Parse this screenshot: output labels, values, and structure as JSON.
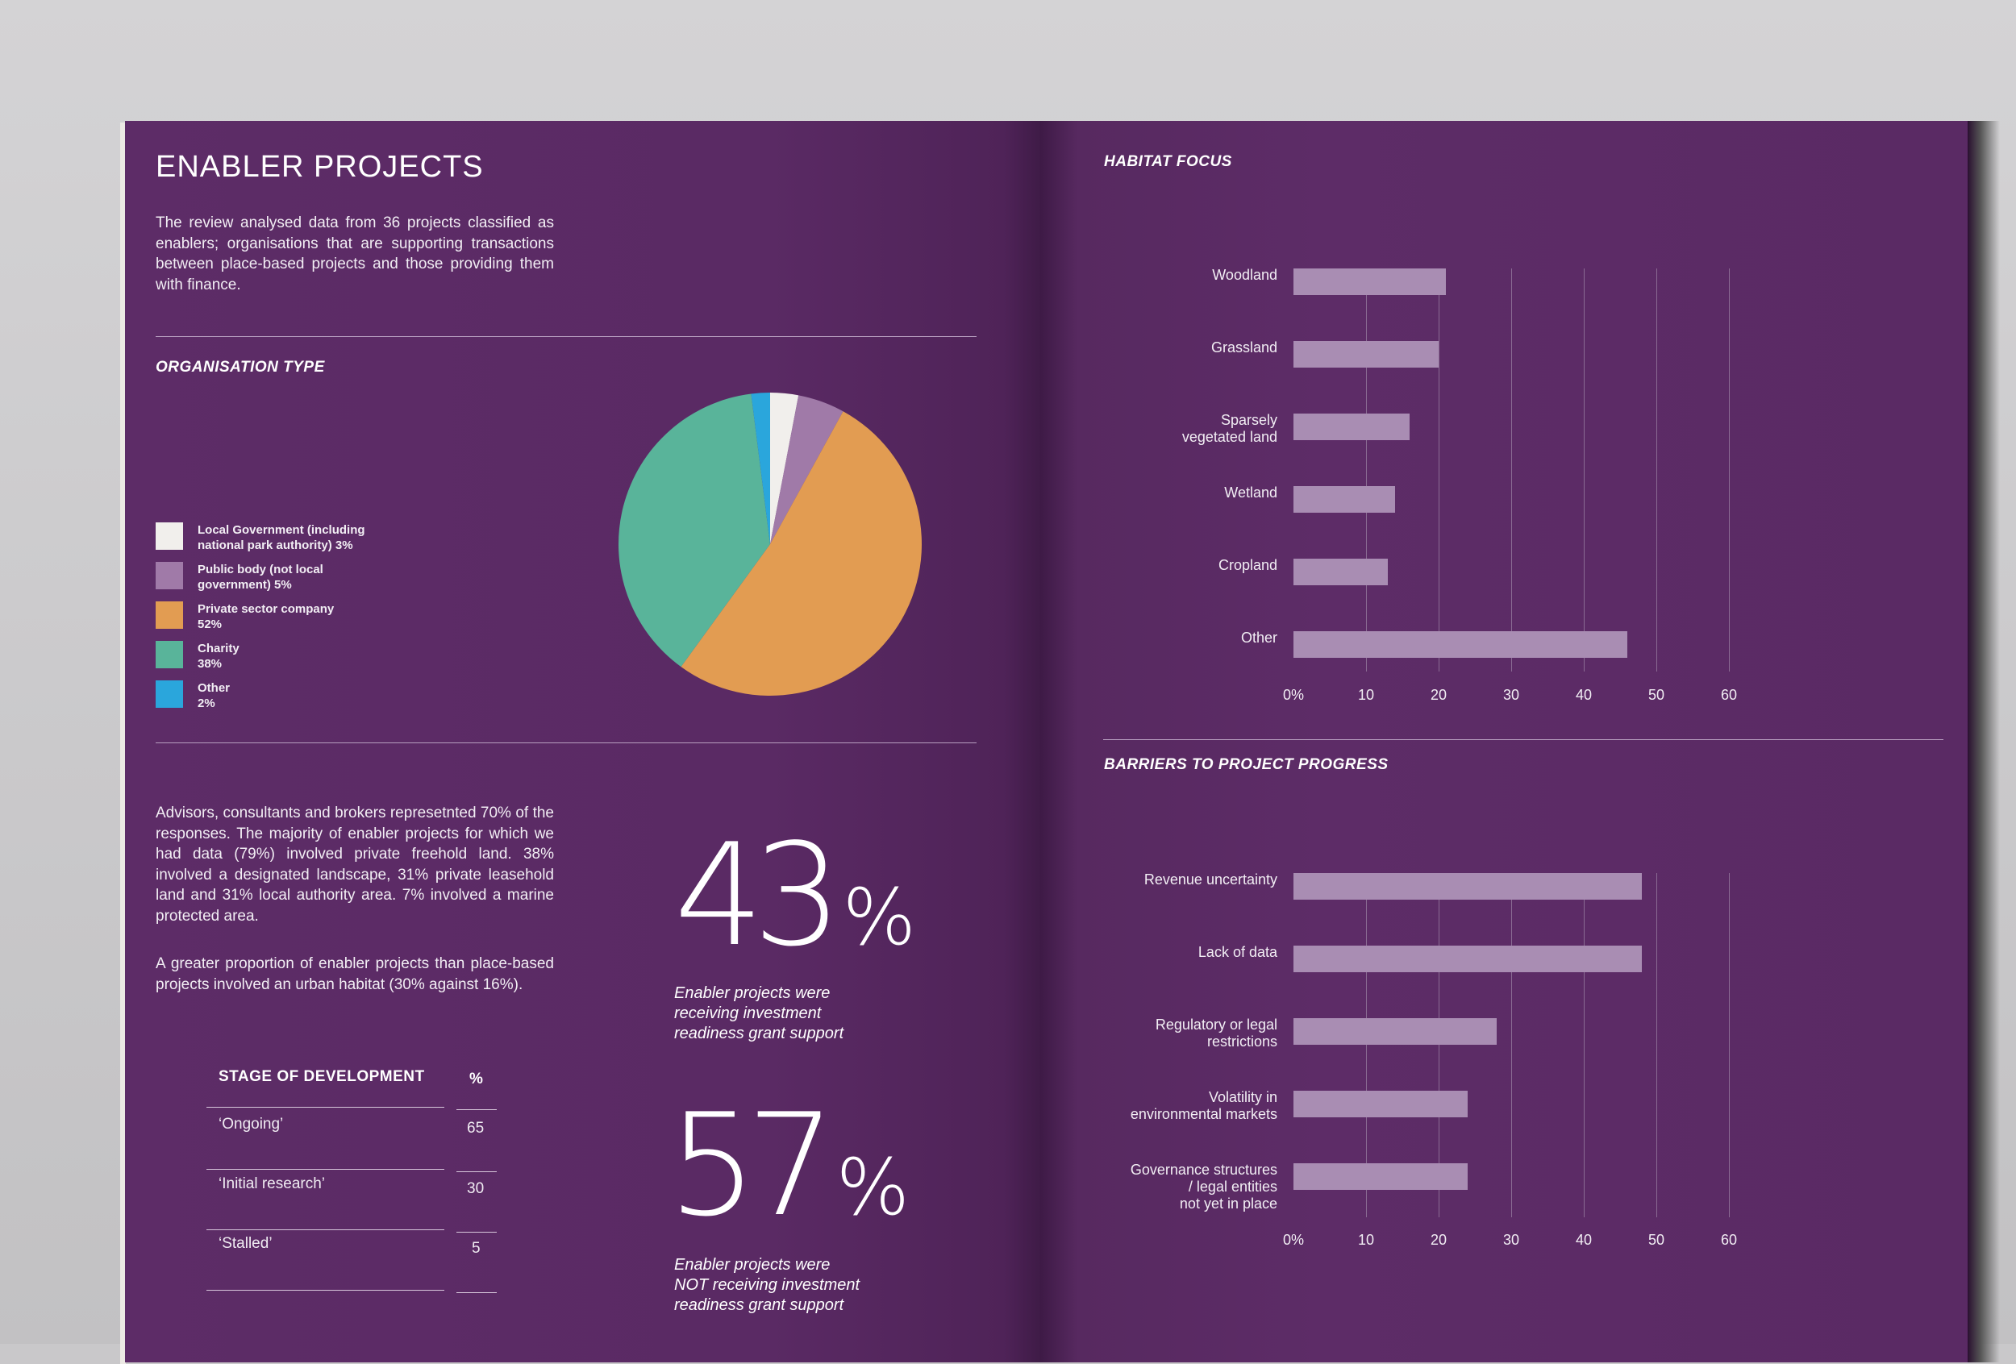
{
  "left": {
    "title": "ENABLER PROJECTS",
    "intro": "The review analysed data from 36 projects classified as enablers; organisations that are supporting transactions between place-based projects and those providing them with finance.",
    "org_type_heading": "ORGANISATION TYPE",
    "legend": [
      {
        "label_line1": "Local Government (including",
        "label_line2": "national park authority) 3%",
        "color": "#f1efec"
      },
      {
        "label_line1": "Public body (not local",
        "label_line2": "government) 5%",
        "color": "#a07aa8"
      },
      {
        "label_line1": "Private sector company",
        "label_line2": "52%",
        "color": "#e29c52"
      },
      {
        "label_line1": "Charity",
        "label_line2": "38%",
        "color": "#59b49a"
      },
      {
        "label_line1": "Other",
        "label_line2": "2%",
        "color": "#2aa6dc"
      }
    ],
    "body1": "Advisors, consultants and brokers represetnted 70% of the responses. The majority of enabler projects for which we had data (79%) involved private freehold land. 38% involved a designated landscape, 31% private leasehold land and 31% local authority area. 7% involved a marine protected area.",
    "body2": "A greater proportion of enabler projects than place-based projects involved an urban habitat (30% against 16%).",
    "stat1": {
      "number": "43",
      "symbol": "%",
      "caption_l1": "Enabler projects were",
      "caption_l2": "receiving investment",
      "caption_l3": "readiness grant support"
    },
    "stat2": {
      "number": "57",
      "symbol": "%",
      "caption_l1": "Enabler projects were",
      "caption_l2": "NOT receiving investment",
      "caption_l3": "readiness grant support"
    },
    "table": {
      "col1": "STAGE OF DEVELOPMENT",
      "col2": "%",
      "rows": [
        {
          "stage": "‘Ongoing’",
          "pct": "65"
        },
        {
          "stage": "‘Initial research’",
          "pct": "30"
        },
        {
          "stage": "‘Stalled’",
          "pct": "5"
        }
      ]
    }
  },
  "right": {
    "habitat_heading": "HABITAT FOCUS",
    "barriers_heading": "BARRIERS TO PROJECT PROGRESS"
  },
  "chart_data": [
    {
      "type": "pie",
      "title": "ORGANISATION TYPE",
      "categories": [
        "Local Government (including national park authority)",
        "Public body (not local government)",
        "Private sector company",
        "Charity",
        "Other"
      ],
      "values": [
        3,
        5,
        52,
        38,
        2
      ],
      "colors": [
        "#f1efec",
        "#a07aa8",
        "#e29c52",
        "#59b49a",
        "#2aa6dc"
      ]
    },
    {
      "type": "bar",
      "orientation": "horizontal",
      "title": "HABITAT FOCUS",
      "categories": [
        "Woodland",
        "Grassland",
        "Sparsely vegetated land",
        "Wetland",
        "Cropland",
        "Other"
      ],
      "category_lines": [
        [
          "Woodland"
        ],
        [
          "Grassland"
        ],
        [
          "Sparsely",
          "vegetated land"
        ],
        [
          "Wetland"
        ],
        [
          "Cropland"
        ],
        [
          "Other"
        ]
      ],
      "values": [
        21,
        20,
        16,
        14,
        13,
        46
      ],
      "xlim": [
        0,
        60
      ],
      "xticks": [
        "0%",
        "10",
        "20",
        "30",
        "40",
        "50",
        "60"
      ],
      "bar_color": "#a98db3"
    },
    {
      "type": "bar",
      "orientation": "horizontal",
      "title": "BARRIERS TO PROJECT PROGRESS",
      "categories": [
        "Revenue uncertainty",
        "Lack of data",
        "Regulatory or legal restrictions",
        "Volatility in environmental markets",
        "Governance structures / legal entities not yet in place"
      ],
      "category_lines": [
        [
          "Revenue uncertainty"
        ],
        [
          "Lack of data"
        ],
        [
          "Regulatory or legal",
          "restrictions"
        ],
        [
          "Volatility in",
          "environmental markets"
        ],
        [
          "Governance structures",
          "/ legal entities",
          "not yet in place"
        ]
      ],
      "values": [
        48,
        48,
        28,
        24,
        24
      ],
      "xlim": [
        0,
        60
      ],
      "xticks": [
        "0%",
        "10",
        "20",
        "30",
        "40",
        "50",
        "60"
      ],
      "bar_color": "#a98db3"
    }
  ]
}
